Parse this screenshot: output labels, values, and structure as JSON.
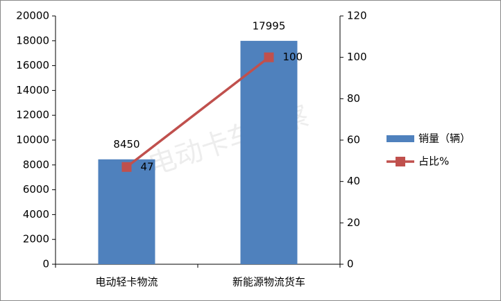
{
  "chart_data": {
    "type": "combo",
    "watermark": "电动卡车观察",
    "categories": [
      "电动轻卡物流",
      "新能源物流货车"
    ],
    "series": [
      {
        "name": "销量（辆）",
        "type": "bar",
        "color": "#4f81bd",
        "values": [
          8450,
          17995
        ]
      },
      {
        "name": "占比%",
        "type": "line",
        "axis": "y2",
        "color": "#c0504d",
        "values": [
          47,
          100
        ]
      }
    ],
    "ylim": [
      0,
      20000
    ],
    "yticks": [
      0,
      2000,
      4000,
      6000,
      8000,
      10000,
      12000,
      14000,
      16000,
      18000,
      20000
    ],
    "y2lim": [
      0,
      120
    ],
    "y2ticks": [
      0,
      20,
      40,
      60,
      80,
      100,
      120
    ],
    "grid": false,
    "legend": "right"
  }
}
